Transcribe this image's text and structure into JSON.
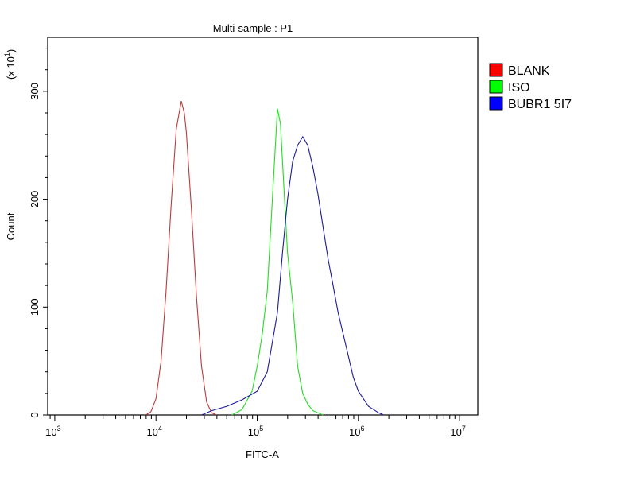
{
  "chart_data": {
    "type": "line",
    "title": "Multi-sample : P1",
    "xlabel": "FITC-A",
    "ylabel": "Count",
    "y_multiplier": "(x 10",
    "y_multiplier_exp": "1",
    "x_scale": "log10",
    "xlim_log10": [
      2.93,
      7.18
    ],
    "ylim": [
      0,
      350
    ],
    "x_ticks": [
      {
        "base": "10",
        "exp": "3",
        "log10": 3
      },
      {
        "base": "10",
        "exp": "4",
        "log10": 4
      },
      {
        "base": "10",
        "exp": "5",
        "log10": 5
      },
      {
        "base": "10",
        "exp": "6",
        "log10": 6
      },
      {
        "base": "10",
        "exp": "7",
        "log10": 7
      }
    ],
    "y_ticks": [
      "0",
      "100",
      "200",
      "300"
    ],
    "y_tick_values": [
      0,
      100,
      200,
      300
    ],
    "grid": false,
    "legend_position": "right",
    "series": [
      {
        "name": "BLANK",
        "color": "#ff0000",
        "line_color": "#c0393b",
        "log10_x": [
          3.9,
          3.95,
          4.0,
          4.05,
          4.1,
          4.15,
          4.2,
          4.25,
          4.28,
          4.3,
          4.35,
          4.4,
          4.45,
          4.5,
          4.55,
          4.6
        ],
        "y": [
          0,
          3,
          15,
          50,
          115,
          195,
          265,
          291,
          280,
          262,
          190,
          110,
          45,
          12,
          2,
          0
        ]
      },
      {
        "name": "ISO",
        "color": "#00ff00",
        "line_color": "#22dd22",
        "log10_x": [
          4.75,
          4.85,
          4.95,
          5.0,
          5.05,
          5.1,
          5.15,
          5.2,
          5.23,
          5.27,
          5.3,
          5.35,
          5.4,
          5.45,
          5.5,
          5.55,
          5.65
        ],
        "y": [
          0,
          5,
          22,
          45,
          75,
          115,
          200,
          284,
          270,
          200,
          150,
          105,
          45,
          20,
          10,
          4,
          0
        ]
      },
      {
        "name": "BUBR1 5I7",
        "color": "#0000ff",
        "line_color": "#1a1a9a",
        "log10_x": [
          4.45,
          4.55,
          4.7,
          4.85,
          5.0,
          5.1,
          5.2,
          5.25,
          5.3,
          5.35,
          5.4,
          5.45,
          5.5,
          5.55,
          5.6,
          5.65,
          5.7,
          5.75,
          5.8,
          5.85,
          5.9,
          5.95,
          6.0,
          6.1,
          6.2,
          6.25
        ],
        "y": [
          0,
          4,
          8,
          14,
          22,
          40,
          95,
          150,
          200,
          235,
          250,
          258,
          250,
          230,
          205,
          175,
          145,
          120,
          95,
          75,
          55,
          35,
          22,
          8,
          2,
          0
        ]
      }
    ]
  }
}
